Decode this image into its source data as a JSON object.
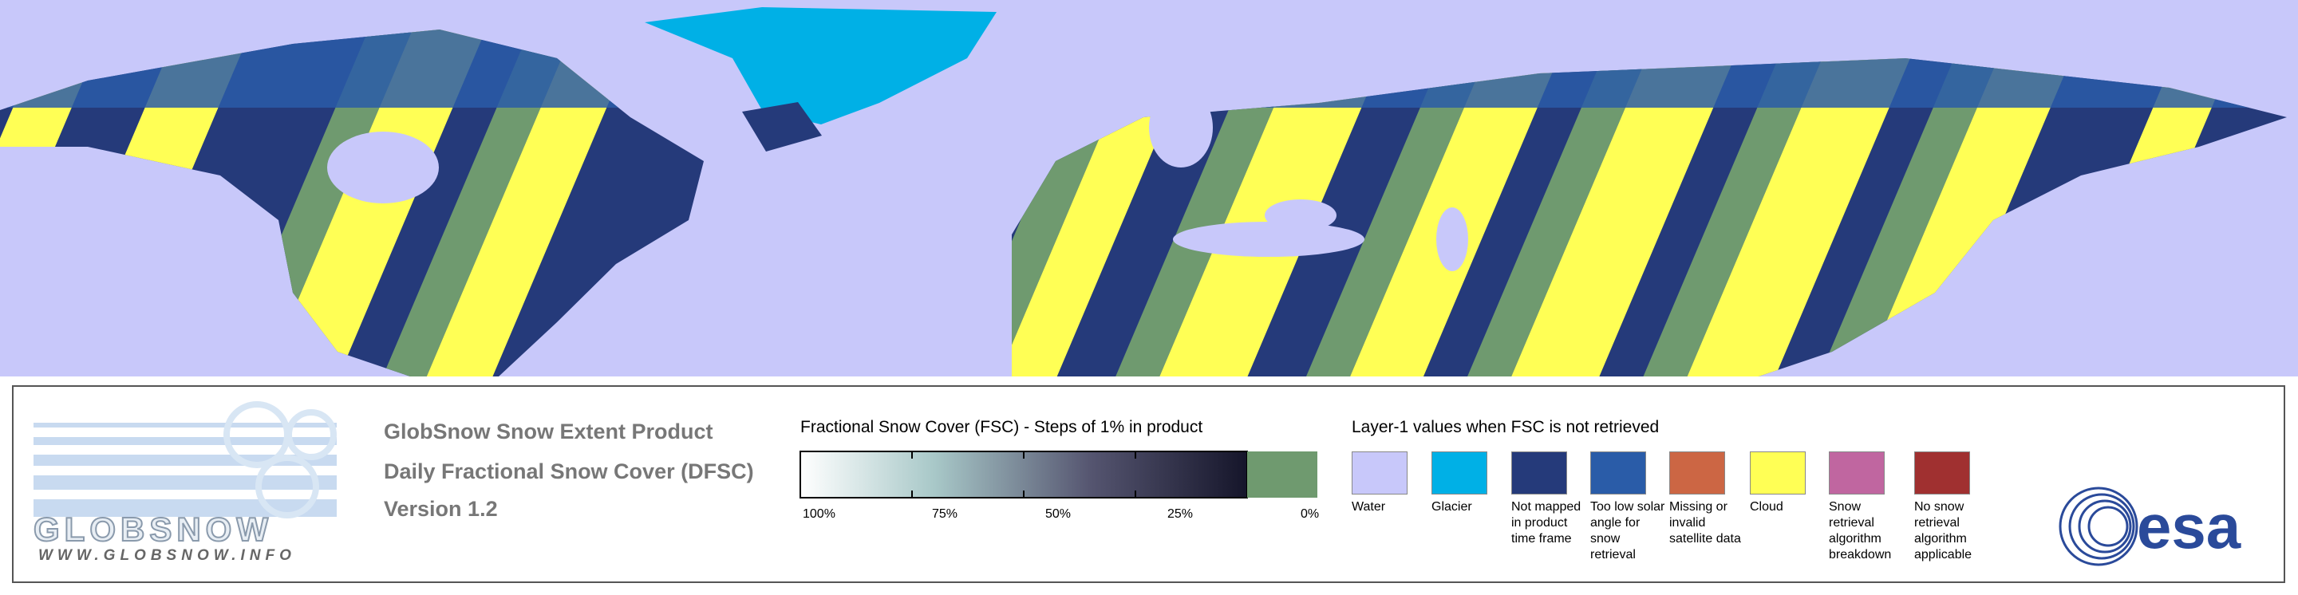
{
  "header": {
    "title": "GlobSnow Snow Extent Product",
    "subtitle": "Daily Fractional Snow Cover (DFSC)",
    "version": "Version 1.2"
  },
  "logo": {
    "name": "GLOBSNOW",
    "url": "WWW.GLOBSNOW.INFO"
  },
  "fsc_scale": {
    "title": "Fractional Snow Cover (FSC) - Steps of 1% in product",
    "labels": [
      "100%",
      "75%",
      "50%",
      "25%",
      "0%"
    ]
  },
  "layer1_legend": {
    "title": "Layer-1 values when FSC is not retrieved",
    "items": [
      {
        "label": "Water",
        "color": "#c8c8fa"
      },
      {
        "label": "Glacier",
        "color": "#00b0e6"
      },
      {
        "label": "Not mapped in product time frame",
        "color": "#253a7a"
      },
      {
        "label": "Too low solar angle for snow retrieval",
        "color": "#2a5ca8"
      },
      {
        "label": "Missing or invalid satellite data",
        "color": "#cc6644"
      },
      {
        "label": "Cloud",
        "color": "#ffff55"
      },
      {
        "label": "Snow retrieval algorithm breakdown",
        "color": "#c066a0"
      },
      {
        "label": "No snow retrieval algorithm applicable",
        "color": "#a03030"
      }
    ]
  },
  "agency_logo": "esa"
}
